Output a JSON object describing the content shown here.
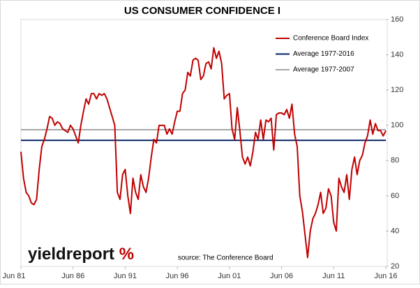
{
  "chart_data": {
    "type": "line",
    "title": "US CONSUMER CONFIDENCE I",
    "x": [
      1981.5,
      1981.75,
      1982,
      1982.25,
      1982.5,
      1982.75,
      1983,
      1983.25,
      1983.5,
      1983.75,
      1984,
      1984.25,
      1984.5,
      1984.75,
      1985,
      1985.25,
      1985.5,
      1985.75,
      1986,
      1986.25,
      1986.5,
      1986.75,
      1987,
      1987.25,
      1987.5,
      1987.75,
      1988,
      1988.25,
      1988.5,
      1988.75,
      1989,
      1989.25,
      1989.5,
      1989.75,
      1990,
      1990.25,
      1990.5,
      1990.75,
      1991,
      1991.25,
      1991.5,
      1991.75,
      1992,
      1992.25,
      1992.5,
      1992.75,
      1993,
      1993.25,
      1993.5,
      1993.75,
      1994,
      1994.25,
      1994.5,
      1994.75,
      1995,
      1995.25,
      1995.5,
      1995.75,
      1996,
      1996.25,
      1996.5,
      1996.75,
      1997,
      1997.25,
      1997.5,
      1997.75,
      1998,
      1998.25,
      1998.5,
      1998.75,
      1999,
      1999.25,
      1999.5,
      1999.75,
      2000,
      2000.25,
      2000.5,
      2000.75,
      2001,
      2001.25,
      2001.5,
      2001.75,
      2002,
      2002.25,
      2002.5,
      2002.75,
      2003,
      2003.25,
      2003.5,
      2003.75,
      2004,
      2004.25,
      2004.5,
      2004.75,
      2005,
      2005.25,
      2005.5,
      2005.75,
      2006,
      2006.25,
      2006.5,
      2006.75,
      2007,
      2007.25,
      2007.5,
      2007.75,
      2008,
      2008.25,
      2008.5,
      2008.75,
      2009,
      2009.25,
      2009.5,
      2009.75,
      2010,
      2010.25,
      2010.5,
      2010.75,
      2011,
      2011.25,
      2011.5,
      2011.75,
      2012,
      2012.25,
      2012.5,
      2012.75,
      2013,
      2013.25,
      2013.5,
      2013.75,
      2014,
      2014.25,
      2014.5,
      2014.75,
      2015,
      2015.25,
      2015.5,
      2015.75,
      2016,
      2016.25,
      2016.5
    ],
    "series": [
      {
        "name": "Conference Board Index",
        "color": "#c00000",
        "values": [
          85,
          70,
          62,
          60,
          56,
          55,
          58,
          75,
          88,
          92,
          98,
          105,
          104,
          100,
          102,
          101,
          98,
          97,
          96,
          100,
          98,
          94,
          90,
          100,
          108,
          115,
          112,
          118,
          118,
          115,
          118,
          117,
          118,
          115,
          110,
          105,
          100,
          62,
          58,
          72,
          75,
          60,
          50,
          70,
          62,
          58,
          72,
          65,
          62,
          70,
          82,
          92,
          90,
          100,
          100,
          100,
          95,
          98,
          95,
          102,
          108,
          108,
          118,
          120,
          130,
          128,
          137,
          138,
          137,
          126,
          128,
          135,
          136,
          132,
          144,
          138,
          142,
          135,
          115,
          117,
          118,
          98,
          92,
          110,
          97,
          82,
          78,
          82,
          77,
          85,
          96,
          92,
          103,
          92,
          103,
          102,
          104,
          86,
          106,
          107,
          107,
          106,
          109,
          104,
          112,
          95,
          88,
          60,
          51,
          38,
          25,
          40,
          47,
          50,
          55,
          62,
          50,
          53,
          64,
          60,
          45,
          40,
          70,
          65,
          62,
          72,
          58,
          75,
          82,
          72,
          80,
          83,
          90,
          94,
          103,
          95,
          101,
          97,
          97,
          94,
          97
        ]
      }
    ],
    "reference_lines": [
      {
        "name": "Average 1977-2016",
        "value": 91.5,
        "color": "#002060"
      },
      {
        "name": "Average 1977-2007",
        "value": 97.5,
        "color": "#a6a6a6"
      }
    ],
    "xlim": [
      1981.5,
      2016.5
    ],
    "xticks": [
      {
        "value": 1981.5,
        "label": "Jun 81"
      },
      {
        "value": 1986.5,
        "label": "Jun 86"
      },
      {
        "value": 1991.5,
        "label": "Jun 91"
      },
      {
        "value": 1996.5,
        "label": "Jun 96"
      },
      {
        "value": 2001.5,
        "label": "Jun 01"
      },
      {
        "value": 2006.5,
        "label": "Jun 06"
      },
      {
        "value": 2011.5,
        "label": "Jun 11"
      },
      {
        "value": 2016.5,
        "label": "Jun 16"
      }
    ],
    "ylim": [
      20,
      160
    ],
    "yticks": [
      20,
      40,
      60,
      80,
      100,
      120,
      140,
      160
    ],
    "source": "source: The Conference Board",
    "logo": {
      "text": "yieldreport",
      "mark": "%"
    }
  }
}
